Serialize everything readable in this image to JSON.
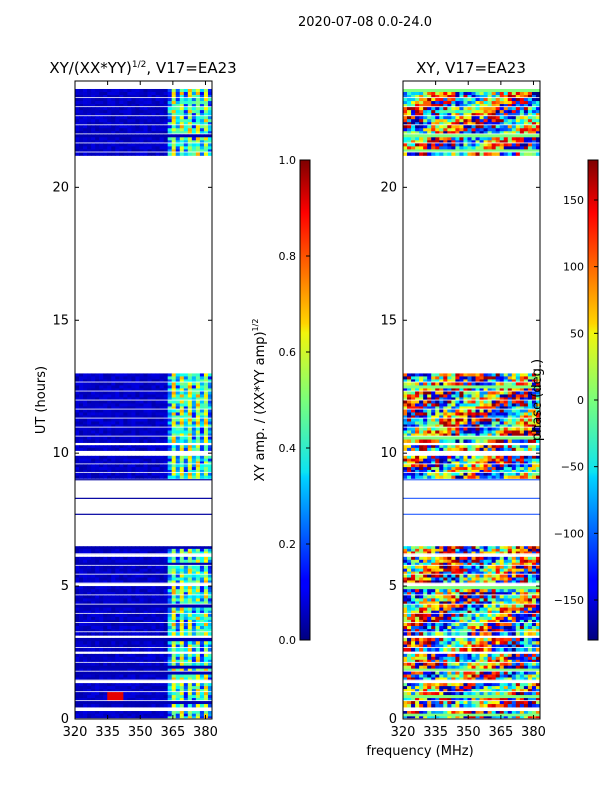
{
  "suptitle": "2020-07-08 0.0-24.0",
  "chart_data": [
    {
      "type": "heatmap",
      "title_main": "XY/(XX*YY)",
      "title_exp": "1/2",
      "title_rest": ", V17=EA23",
      "xlabel": "",
      "ylabel": "UT (hours)",
      "xlim": [
        320,
        383
      ],
      "ylim": [
        0,
        24
      ],
      "xticks": [
        320,
        335,
        350,
        365,
        380
      ],
      "yticks": [
        0,
        5,
        10,
        15,
        20
      ],
      "colorbar": {
        "label_main": "XY amp. / (XX*YY amp)",
        "label_exp": "1/2",
        "range": [
          0.0,
          1.0
        ],
        "ticks": [
          "0.0",
          "0.2",
          "0.4",
          "0.6",
          "0.8",
          "1.0"
        ],
        "tick_values": [
          0.0,
          0.2,
          0.4,
          0.6,
          0.8,
          1.0
        ]
      },
      "data_bands_hours": [
        [
          0.0,
          0.3
        ],
        [
          0.45,
          1.35
        ],
        [
          1.45,
          2.45
        ],
        [
          2.55,
          3.05
        ],
        [
          3.15,
          5.0
        ],
        [
          5.1,
          6.1
        ],
        [
          6.2,
          6.5
        ],
        [
          9.05,
          9.9
        ],
        [
          10.1,
          10.3
        ],
        [
          10.4,
          13.0
        ],
        [
          21.2,
          23.7
        ]
      ],
      "outlier_lines_hours": [
        7.7,
        8.3,
        9.0
      ]
    },
    {
      "type": "heatmap",
      "title": "XY, V17=EA23",
      "xlabel": "frequency (MHz)",
      "ylabel": "",
      "xlim": [
        320,
        383
      ],
      "ylim": [
        0,
        24
      ],
      "xticks": [
        320,
        335,
        350,
        365,
        380
      ],
      "yticks": [
        0,
        5,
        10,
        15,
        20
      ],
      "colorbar": {
        "label": "phase (deg.)",
        "range": [
          -180,
          180
        ],
        "ticks": [
          "−150",
          "−100",
          "−50",
          "0",
          "50",
          "100",
          "150"
        ],
        "tick_values": [
          -150,
          -100,
          -50,
          0,
          50,
          100,
          150
        ]
      },
      "data_bands_hours": [
        [
          0.0,
          0.3
        ],
        [
          0.45,
          1.35
        ],
        [
          1.45,
          2.45
        ],
        [
          2.55,
          3.05
        ],
        [
          3.15,
          5.0
        ],
        [
          5.1,
          6.1
        ],
        [
          6.2,
          6.5
        ],
        [
          9.05,
          9.9
        ],
        [
          10.1,
          10.3
        ],
        [
          10.4,
          13.0
        ],
        [
          21.2,
          23.7
        ]
      ],
      "outlier_lines_hours": [
        7.7,
        8.3,
        9.0
      ]
    }
  ]
}
